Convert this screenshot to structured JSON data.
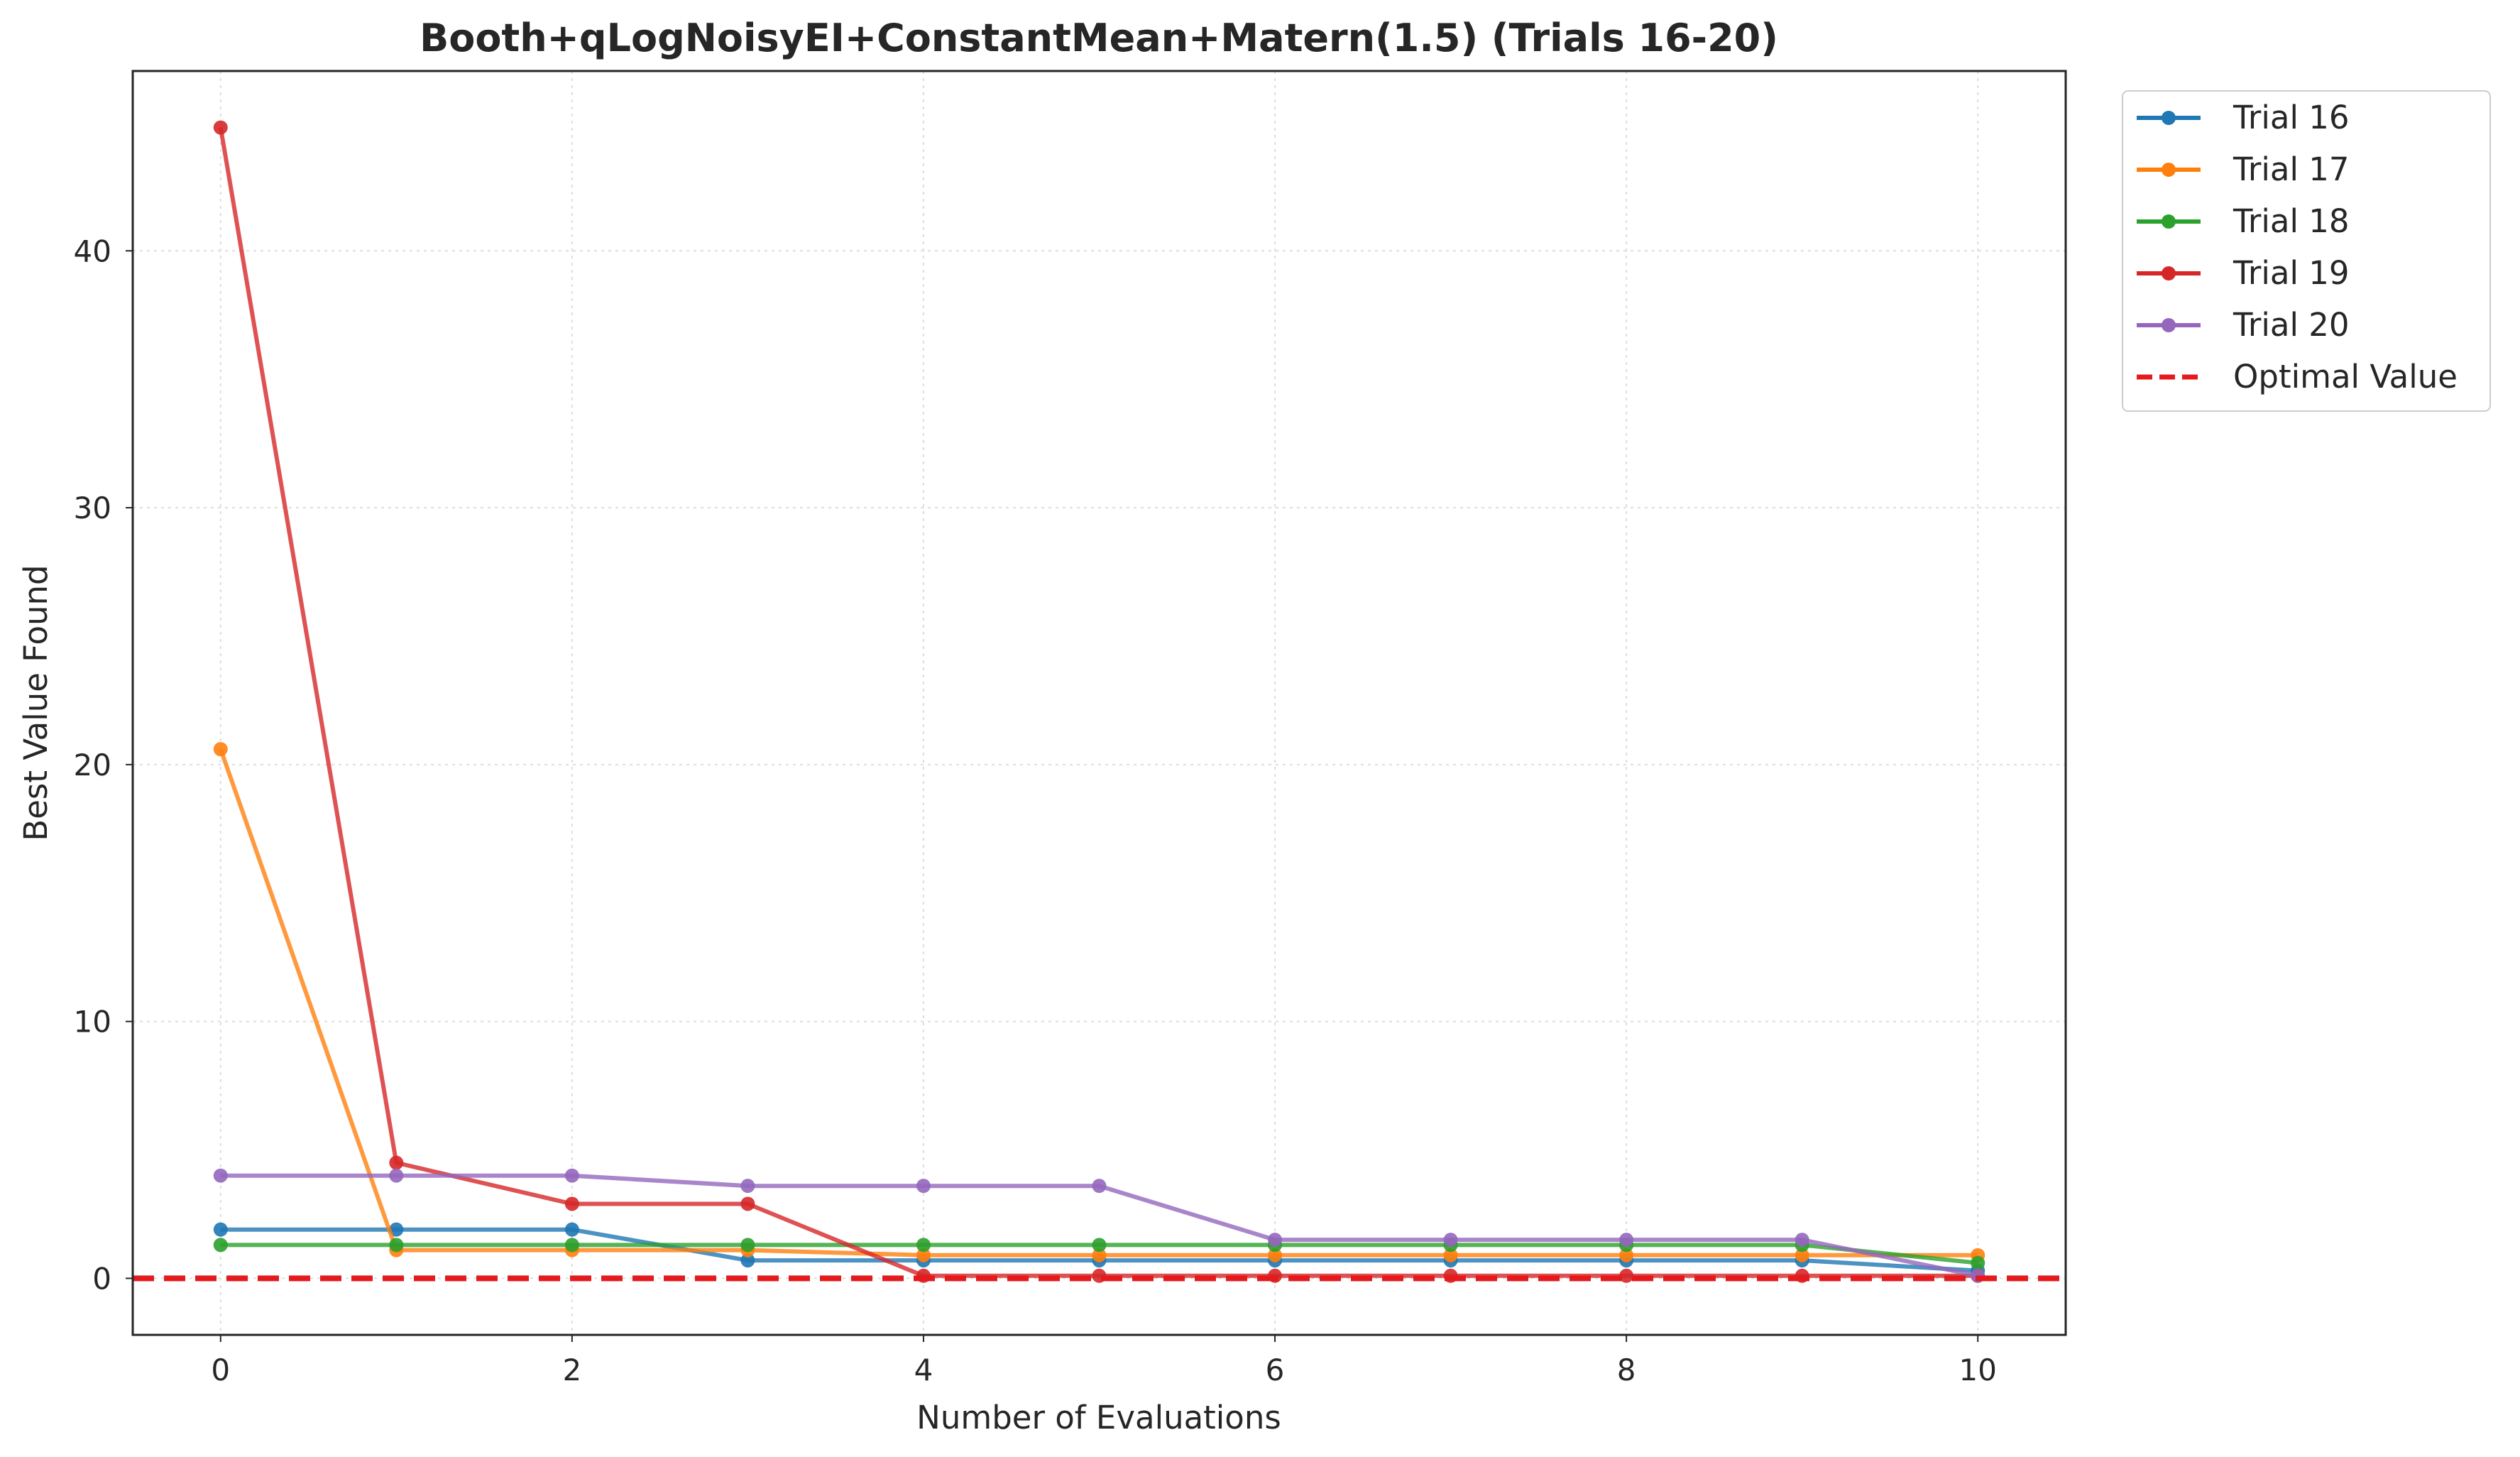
{
  "chart_data": {
    "type": "line",
    "title": "Booth+qLogNoisyEI+ConstantMean+Matern(1.5) (Trials 16-20)",
    "xlabel": "Number of Evaluations",
    "ylabel": "Best Value Found",
    "xlim": [
      -0.5,
      10.5
    ],
    "ylim": [
      -2.2,
      47.0
    ],
    "xticks": [
      0,
      2,
      4,
      6,
      8,
      10
    ],
    "yticks": [
      0,
      10,
      20,
      30,
      40
    ],
    "grid": true,
    "legend_position": "outside-top-right",
    "x": [
      0,
      1,
      2,
      3,
      4,
      5,
      6,
      7,
      8,
      9,
      10
    ],
    "series": [
      {
        "name": "Trial 16",
        "color": "#1f77b4",
        "values": [
          1.9,
          1.9,
          1.9,
          0.7,
          0.7,
          0.7,
          0.7,
          0.7,
          0.7,
          0.7,
          0.3
        ]
      },
      {
        "name": "Trial 17",
        "color": "#ff7f0e",
        "values": [
          20.6,
          1.1,
          1.1,
          1.1,
          0.9,
          0.9,
          0.9,
          0.9,
          0.9,
          0.9,
          0.9
        ]
      },
      {
        "name": "Trial 18",
        "color": "#2ca02c",
        "values": [
          1.3,
          1.3,
          1.3,
          1.3,
          1.3,
          1.3,
          1.3,
          1.3,
          1.3,
          1.3,
          0.6
        ]
      },
      {
        "name": "Trial 19",
        "color": "#d62728",
        "values": [
          44.8,
          4.5,
          2.9,
          2.9,
          0.1,
          0.1,
          0.1,
          0.1,
          0.1,
          0.1,
          0.1
        ]
      },
      {
        "name": "Trial 20",
        "color": "#9467bd",
        "values": [
          4.0,
          4.0,
          4.0,
          3.6,
          3.6,
          3.6,
          1.5,
          1.5,
          1.5,
          1.5,
          0.1
        ]
      }
    ],
    "reference_line": {
      "name": "Optimal Value",
      "value": 0,
      "color": "#e41a1c",
      "style": "dashed"
    }
  }
}
